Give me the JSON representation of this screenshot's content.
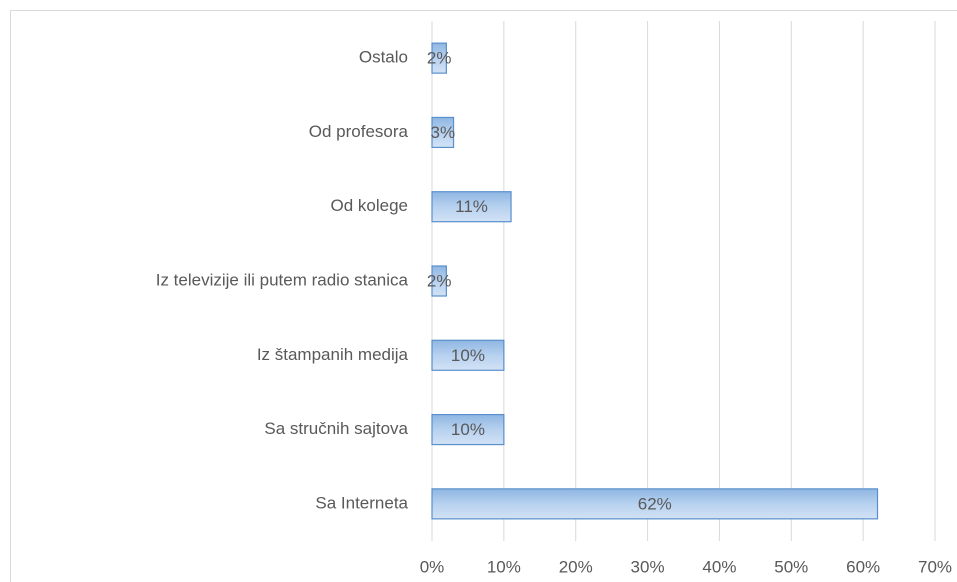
{
  "chart_data": {
    "type": "bar",
    "orientation": "horizontal",
    "categories": [
      "Ostalo",
      "Od profesora",
      "Od kolege",
      "Iz televizije ili putem radio stanica",
      "Iz štampanih medija",
      "Sa stručnih sajtova",
      "Sa Interneta"
    ],
    "values": [
      2,
      3,
      11,
      2,
      10,
      10,
      62
    ],
    "value_labels": [
      "2%",
      "3%",
      "11%",
      "2%",
      "10%",
      "10%",
      "62%"
    ],
    "color": "#a9c8ea",
    "xlim": [
      0,
      70
    ],
    "xticks": [
      {
        "value": 0,
        "label": "0%"
      },
      {
        "value": 10,
        "label": "10%"
      },
      {
        "value": 20,
        "label": "20%"
      },
      {
        "value": 30,
        "label": "30%"
      },
      {
        "value": 40,
        "label": "40%"
      },
      {
        "value": 50,
        "label": "50%"
      },
      {
        "value": 60,
        "label": "60%"
      },
      {
        "value": 70,
        "label": "70%"
      }
    ],
    "grid": true
  }
}
